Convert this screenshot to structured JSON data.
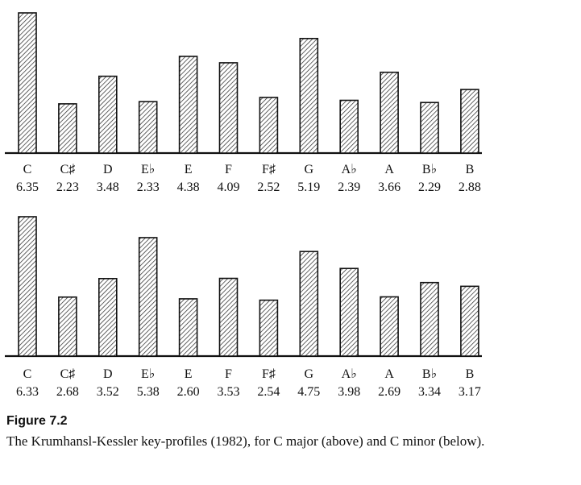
{
  "chart_data": [
    {
      "type": "bar",
      "categories": [
        "C",
        "C♯",
        "D",
        "E♭",
        "E",
        "F",
        "F♯",
        "G",
        "A♭",
        "A",
        "B♭",
        "B"
      ],
      "values": [
        6.35,
        2.23,
        3.48,
        2.33,
        4.38,
        4.09,
        2.52,
        5.19,
        2.39,
        3.66,
        2.29,
        2.88
      ],
      "value_labels": [
        "6.35",
        "2.23",
        "3.48",
        "2.33",
        "4.38",
        "4.09",
        "2.52",
        "5.19",
        "2.39",
        "3.66",
        "2.29",
        "2.88"
      ],
      "title": "",
      "xlabel": "",
      "ylabel": "",
      "ylim": [
        0,
        6.35
      ],
      "bar_fill": "hatched",
      "grid": false
    },
    {
      "type": "bar",
      "categories": [
        "C",
        "C♯",
        "D",
        "E♭",
        "E",
        "F",
        "F♯",
        "G",
        "A♭",
        "A",
        "B♭",
        "B"
      ],
      "values": [
        6.33,
        2.68,
        3.52,
        5.38,
        2.6,
        3.53,
        2.54,
        4.75,
        3.98,
        2.69,
        3.34,
        3.17
      ],
      "value_labels": [
        "6.33",
        "2.68",
        "3.52",
        "5.38",
        "2.60",
        "3.53",
        "2.54",
        "4.75",
        "3.98",
        "2.69",
        "3.34",
        "3.17"
      ],
      "title": "",
      "xlabel": "",
      "ylabel": "",
      "ylim": [
        0,
        6.33
      ],
      "bar_fill": "hatched",
      "grid": false
    }
  ],
  "caption": {
    "title": "Figure 7.2",
    "text": "The Krumhansl-Kessler key-profiles (1982), for C major (above) and C minor (below)."
  },
  "colors": {
    "ink": "#111111",
    "background": "#ffffff"
  }
}
